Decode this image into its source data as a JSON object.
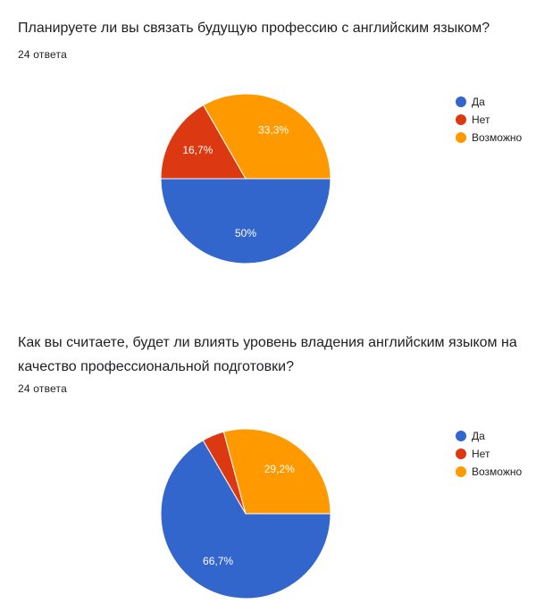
{
  "questions": [
    {
      "title": "Планируете ли вы связать будущую профессию с английским языком?",
      "response_count": "24 ответа"
    },
    {
      "title": "Как вы считаете, будет ли влиять уровень владения английским языком на качество профессиональной подготовки?",
      "response_count": "24 ответа"
    }
  ],
  "colors": {
    "da": "#3366cc",
    "net": "#dc3912",
    "vozmozhno": "#ff9900"
  },
  "chart_data": [
    {
      "type": "pie",
      "categories": [
        "Да",
        "Нет",
        "Возможно"
      ],
      "values": [
        50,
        16.7,
        33.3
      ],
      "value_labels": [
        "50%",
        "16,7%",
        "33,3%"
      ],
      "colors": [
        "#3366cc",
        "#dc3912",
        "#ff9900"
      ],
      "legend_position": "right"
    },
    {
      "type": "pie",
      "categories": [
        "Да",
        "Нет",
        "Возможно"
      ],
      "values": [
        66.7,
        4.2,
        29.2
      ],
      "value_labels": [
        "66,7%",
        "",
        "29,2%"
      ],
      "colors": [
        "#3366cc",
        "#dc3912",
        "#ff9900"
      ],
      "legend_position": "right"
    }
  ]
}
